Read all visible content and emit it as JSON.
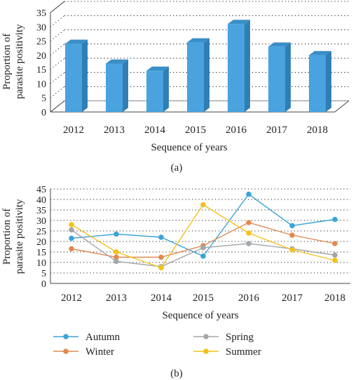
{
  "chart_data": [
    {
      "panel": "(a)",
      "type": "bar",
      "xlabel": "Sequence of years",
      "ylabel_lines": [
        "Proportion of",
        "parasite positivity"
      ],
      "ylim": [
        0,
        35
      ],
      "yticks": [
        "0",
        "5",
        "10",
        "15",
        "20",
        "25",
        "30",
        "35"
      ],
      "categories": [
        "2012",
        "2013",
        "2014",
        "2015",
        "2016",
        "2017",
        "2018"
      ],
      "values": [
        24,
        17,
        14.5,
        24.5,
        31,
        23,
        20
      ],
      "grid": "dotted horizontal",
      "style": "3d",
      "color": "#4aa3df"
    },
    {
      "panel": "(b)",
      "type": "line",
      "xlabel": "Sequence of years",
      "ylabel_lines": [
        "Proportion of",
        "parasite positivity"
      ],
      "ylim": [
        0,
        45
      ],
      "yticks": [
        "0",
        "5",
        "10",
        "15",
        "20",
        "25",
        "30",
        "35",
        "40",
        "45"
      ],
      "categories": [
        "2012",
        "2013",
        "2014",
        "2015",
        "2016",
        "2017",
        "2018"
      ],
      "grid": "dotted horizontal",
      "legend_position": "bottom",
      "series": [
        {
          "name": "Autumn",
          "color": "#3da3d6",
          "values": [
            21.5,
            23.5,
            22,
            13,
            42.5,
            27.5,
            30.5
          ]
        },
        {
          "name": "Winter",
          "color": "#e08a52",
          "values": [
            16.5,
            12.5,
            12.5,
            18,
            29,
            23,
            19
          ]
        },
        {
          "name": "Spring",
          "color": "#a3a7ab",
          "values": [
            25.5,
            10.5,
            8,
            17,
            19,
            16.5,
            13.5
          ]
        },
        {
          "name": "Summer",
          "color": "#f2c21b",
          "values": [
            28,
            15,
            7.5,
            37.5,
            24,
            16,
            11
          ]
        }
      ]
    }
  ]
}
